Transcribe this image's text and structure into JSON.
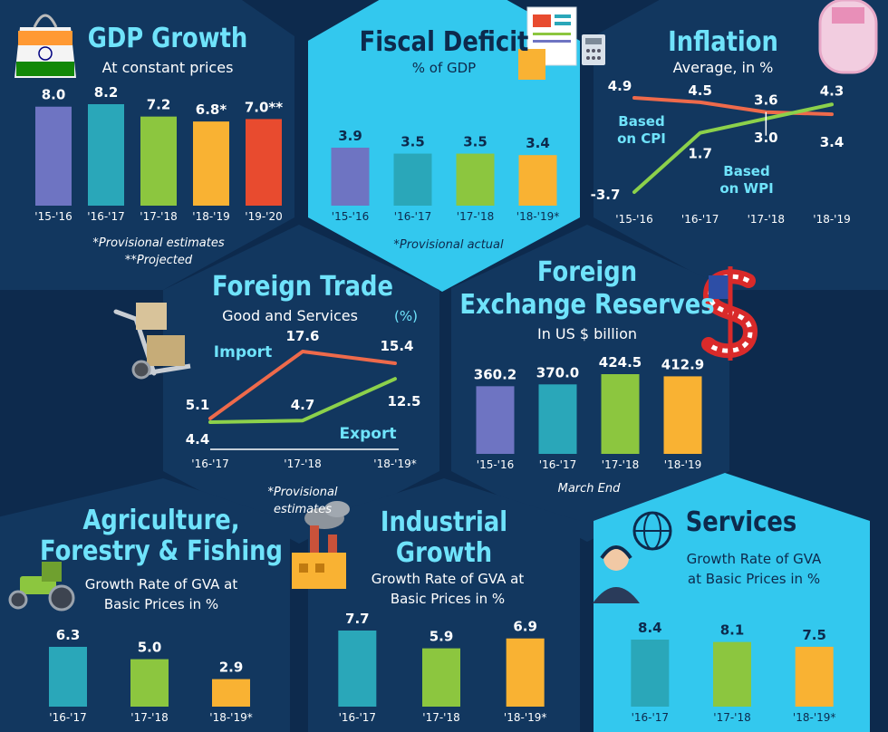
{
  "colors": {
    "background": "#0d2a4d",
    "hex_dark": "#12375f",
    "hex_light": "#33c8ee",
    "title_light": "#6fe3fb",
    "title_dark": "#0d2a4d",
    "purple": "#6e74c2",
    "teal": "#2aa7b9",
    "green": "#8cc63f",
    "yellow": "#f9b233",
    "red": "#e84b2f",
    "line_red": "#ee6a4b",
    "line_green": "#8cd14b"
  },
  "icons": [
    "india-flag-bag-icon",
    "documents-calculator-icon",
    "currency-note-icon",
    "hand-truck-boxes-icon",
    "dollar-sign-icon",
    "tractor-icon",
    "factory-icon",
    "support-headset-icon"
  ],
  "chart_data": [
    {
      "id": "gdp",
      "type": "bar",
      "title": "GDP Growth",
      "subtitle": "At constant prices",
      "categories": [
        "'15-'16",
        "'16-'17",
        "'17-'18",
        "'18-'19",
        "'19-'20"
      ],
      "values": [
        8.0,
        8.2,
        7.2,
        6.8,
        7.0
      ],
      "value_labels": [
        "8.0",
        "8.2",
        "7.2",
        "6.8*",
        "7.0**"
      ],
      "notes": [
        "*Provisional estimates",
        "**Projected"
      ]
    },
    {
      "id": "fiscal",
      "type": "bar",
      "title": "Fiscal Deficit",
      "subtitle": "% of GDP",
      "categories": [
        "'15-'16",
        "'16-'17",
        "'17-'18",
        "'18-'19*"
      ],
      "values": [
        3.9,
        3.5,
        3.5,
        3.4
      ],
      "value_labels": [
        "3.9",
        "3.5",
        "3.5",
        "3.4"
      ],
      "notes": [
        "*Provisional actual"
      ]
    },
    {
      "id": "inflation",
      "type": "line",
      "title": "Inflation",
      "subtitle": "Average, in %",
      "categories": [
        "'15-'16",
        "'16-'17",
        "'17-'18",
        "'18-'19"
      ],
      "series": [
        {
          "name": "Based on CPI",
          "values": [
            4.9,
            4.5,
            3.6,
            3.4
          ],
          "labels": [
            "4.9",
            "4.5",
            "3.6",
            "3.4"
          ]
        },
        {
          "name": "Based on WPI",
          "values": [
            -3.7,
            1.7,
            3.0,
            4.3
          ],
          "labels": [
            "-3.7",
            "1.7",
            "3.0",
            "4.3"
          ]
        }
      ]
    },
    {
      "id": "trade",
      "type": "line",
      "title": "Foreign Trade",
      "subtitle": "Good and Services",
      "unit": "(%)",
      "categories": [
        "'16-'17",
        "'17-'18",
        "'18-'19*"
      ],
      "series": [
        {
          "name": "Import",
          "values": [
            5.1,
            17.6,
            15.4
          ],
          "labels": [
            "5.1",
            "17.6",
            "15.4"
          ]
        },
        {
          "name": "Export",
          "values": [
            4.4,
            4.7,
            12.5
          ],
          "labels": [
            "4.4",
            "4.7",
            "12.5"
          ]
        }
      ],
      "notes": [
        "*Provisional",
        "estimates"
      ]
    },
    {
      "id": "forex",
      "type": "bar",
      "title": "Foreign Exchange Reserves",
      "title_lines": [
        "Foreign",
        "Exchange Reserves"
      ],
      "subtitle": "In US $ billion",
      "categories": [
        "'15-'16",
        "'16-'17",
        "'17-'18",
        "'18-'19"
      ],
      "values": [
        360.2,
        370.0,
        424.5,
        412.9
      ],
      "value_labels": [
        "360.2",
        "370.0",
        "424.5",
        "412.9"
      ],
      "notes": [
        "March End"
      ]
    },
    {
      "id": "agri",
      "type": "bar",
      "title": "Agriculture, Forestry & Fishing",
      "title_lines": [
        "Agriculture,",
        "Forestry & Fishing"
      ],
      "subtitle_lines": [
        "Growth Rate of GVA at",
        "Basic Prices in %"
      ],
      "categories": [
        "'16-'17",
        "'17-'18",
        "'18-'19*"
      ],
      "values": [
        6.3,
        5.0,
        2.9
      ],
      "value_labels": [
        "6.3",
        "5.0",
        "2.9"
      ]
    },
    {
      "id": "industry",
      "type": "bar",
      "title": "Industrial Growth",
      "title_lines": [
        "Industrial",
        "Growth"
      ],
      "subtitle_lines": [
        "Growth Rate of GVA at",
        "Basic Prices in %"
      ],
      "categories": [
        "'16-'17",
        "'17-'18",
        "'18-'19*"
      ],
      "values": [
        7.7,
        5.9,
        6.9
      ],
      "value_labels": [
        "7.7",
        "5.9",
        "6.9"
      ]
    },
    {
      "id": "services",
      "type": "bar",
      "title": "Services",
      "subtitle_lines": [
        "Growth Rate of GVA",
        "at Basic Prices in %"
      ],
      "categories": [
        "'16-'17",
        "'17-'18",
        "'18-'19*"
      ],
      "values": [
        8.4,
        8.1,
        7.5
      ],
      "value_labels": [
        "8.4",
        "8.1",
        "7.5"
      ]
    }
  ]
}
